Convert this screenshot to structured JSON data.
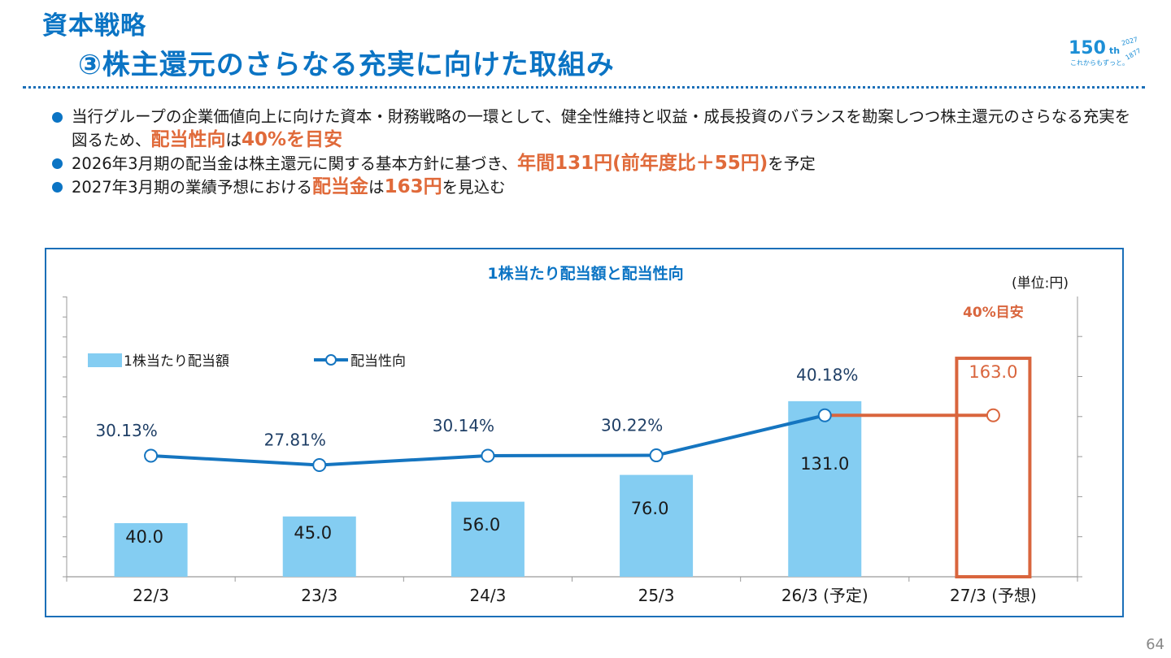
{
  "header": {
    "section": "資本戦略",
    "title": "③株主還元のさらなる充実に向けた取組み"
  },
  "logo": {
    "number": "150",
    "suffix": "th",
    "years_top": "2027",
    "years_bottom": "1877",
    "tagline": "これからもずっと。"
  },
  "bullets": [
    {
      "pre": "当行グループの企業価値向上に向けた資本・財務戦略の一環として、健全性維持と収益・成長投資のバランスを勘案しつつ株主還元のさらなる充実を図るため、",
      "hl1": "配当性向",
      "mid": "は",
      "hl2": "40%を目安",
      "post": ""
    },
    {
      "pre": "2026年3月期の配当金は株主還元に関する基本方針に基づき、",
      "hl1": "年間131円(前年度比＋55円)",
      "mid": "を予定",
      "hl2": "",
      "post": ""
    },
    {
      "pre": "2027年3月期の業績予想における",
      "hl1": "配当金",
      "mid": "は",
      "hl2": "163円",
      "post": "を見込む"
    }
  ],
  "page_number": "64",
  "colors": {
    "title_blue": "#0b74c4",
    "bar": "#84cdf2",
    "line": "#1575c0",
    "accent": "#d9653d"
  },
  "chart_data": {
    "type": "bar",
    "title": "1株当たり配当額と配当性向",
    "unit": "(単位:円)",
    "categories": [
      "22/3",
      "23/3",
      "24/3",
      "25/3",
      "26/3 (予定)",
      "27/3 (予想)"
    ],
    "series": [
      {
        "name": "1株当たり配当額",
        "type": "bar",
        "values": [
          40.0,
          45.0,
          56.0,
          76.0,
          131.0,
          163.0
        ],
        "labels": [
          "40.0",
          "45.0",
          "56.0",
          "76.0",
          "131.0",
          "163.0"
        ]
      },
      {
        "name": "配当性向",
        "type": "line",
        "values": [
          30.13,
          27.81,
          30.14,
          30.22,
          40.18,
          40.18
        ],
        "labels": [
          "30.13%",
          "27.81%",
          "30.14%",
          "30.22%",
          "40.18%",
          ""
        ]
      }
    ],
    "forecast_index": 5,
    "forecast_callout": "40%目安",
    "legend_position": "top-left"
  }
}
